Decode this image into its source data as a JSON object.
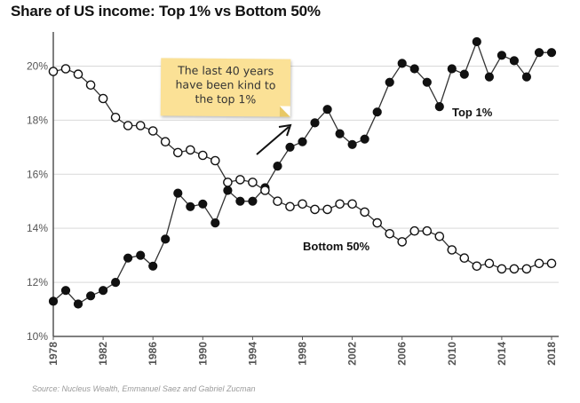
{
  "title": "Share of US income: Top 1% vs Bottom 50%",
  "source": "Source: Nucleus Wealth, Emmanuel Saez and Gabriel Zucman",
  "annotation": "The last 40 years have been kind to the top 1%",
  "colors": {
    "top_marker": "#111111",
    "bottom_marker_fill": "#ffffff",
    "line": "#333333",
    "grid": "#d9d9d9",
    "note_background": "#fbe196"
  },
  "chart_data": {
    "type": "line",
    "title": "Share of US income: Top 1% vs Bottom 50%",
    "xlabel": "",
    "ylabel": "",
    "xlim": [
      1978,
      2018
    ],
    "ylim": [
      10,
      21
    ],
    "grid": "horizontal",
    "x_ticks": [
      "1978",
      "1982",
      "1986",
      "1990",
      "1994",
      "1998",
      "2002",
      "2006",
      "2010",
      "2014",
      "2018"
    ],
    "y_ticks": [
      "10%",
      "12%",
      "14%",
      "16%",
      "18%",
      "20%"
    ],
    "x": [
      1978,
      1979,
      1980,
      1981,
      1982,
      1983,
      1984,
      1985,
      1986,
      1987,
      1988,
      1989,
      1990,
      1991,
      1992,
      1993,
      1994,
      1995,
      1996,
      1997,
      1998,
      1999,
      2000,
      2001,
      2002,
      2003,
      2004,
      2005,
      2006,
      2007,
      2008,
      2009,
      2010,
      2011,
      2012,
      2013,
      2014,
      2015,
      2016,
      2017,
      2018
    ],
    "series": [
      {
        "name": "Top 1%",
        "marker": "filled-circle",
        "values": [
          11.3,
          11.7,
          11.2,
          11.5,
          11.7,
          12.0,
          12.9,
          13.0,
          12.6,
          13.6,
          15.3,
          14.8,
          14.9,
          14.2,
          15.4,
          15.0,
          15.0,
          15.5,
          16.3,
          17.0,
          17.2,
          17.9,
          18.4,
          17.5,
          17.1,
          17.3,
          18.3,
          19.4,
          20.1,
          19.9,
          19.4,
          18.5,
          19.9,
          19.7,
          20.9,
          19.6,
          20.4,
          20.2,
          19.6,
          20.5,
          20.5
        ]
      },
      {
        "name": "Bottom 50%",
        "marker": "hollow-circle",
        "values": [
          19.8,
          19.9,
          19.7,
          19.3,
          18.8,
          18.1,
          17.8,
          17.8,
          17.6,
          17.2,
          16.8,
          16.9,
          16.7,
          16.5,
          15.7,
          15.8,
          15.7,
          15.4,
          15.0,
          14.8,
          14.9,
          14.7,
          14.7,
          14.9,
          14.9,
          14.6,
          14.2,
          13.8,
          13.5,
          13.9,
          13.9,
          13.7,
          13.2,
          12.9,
          12.6,
          12.7,
          12.5,
          12.5,
          12.5,
          12.7,
          12.7
        ]
      }
    ]
  }
}
